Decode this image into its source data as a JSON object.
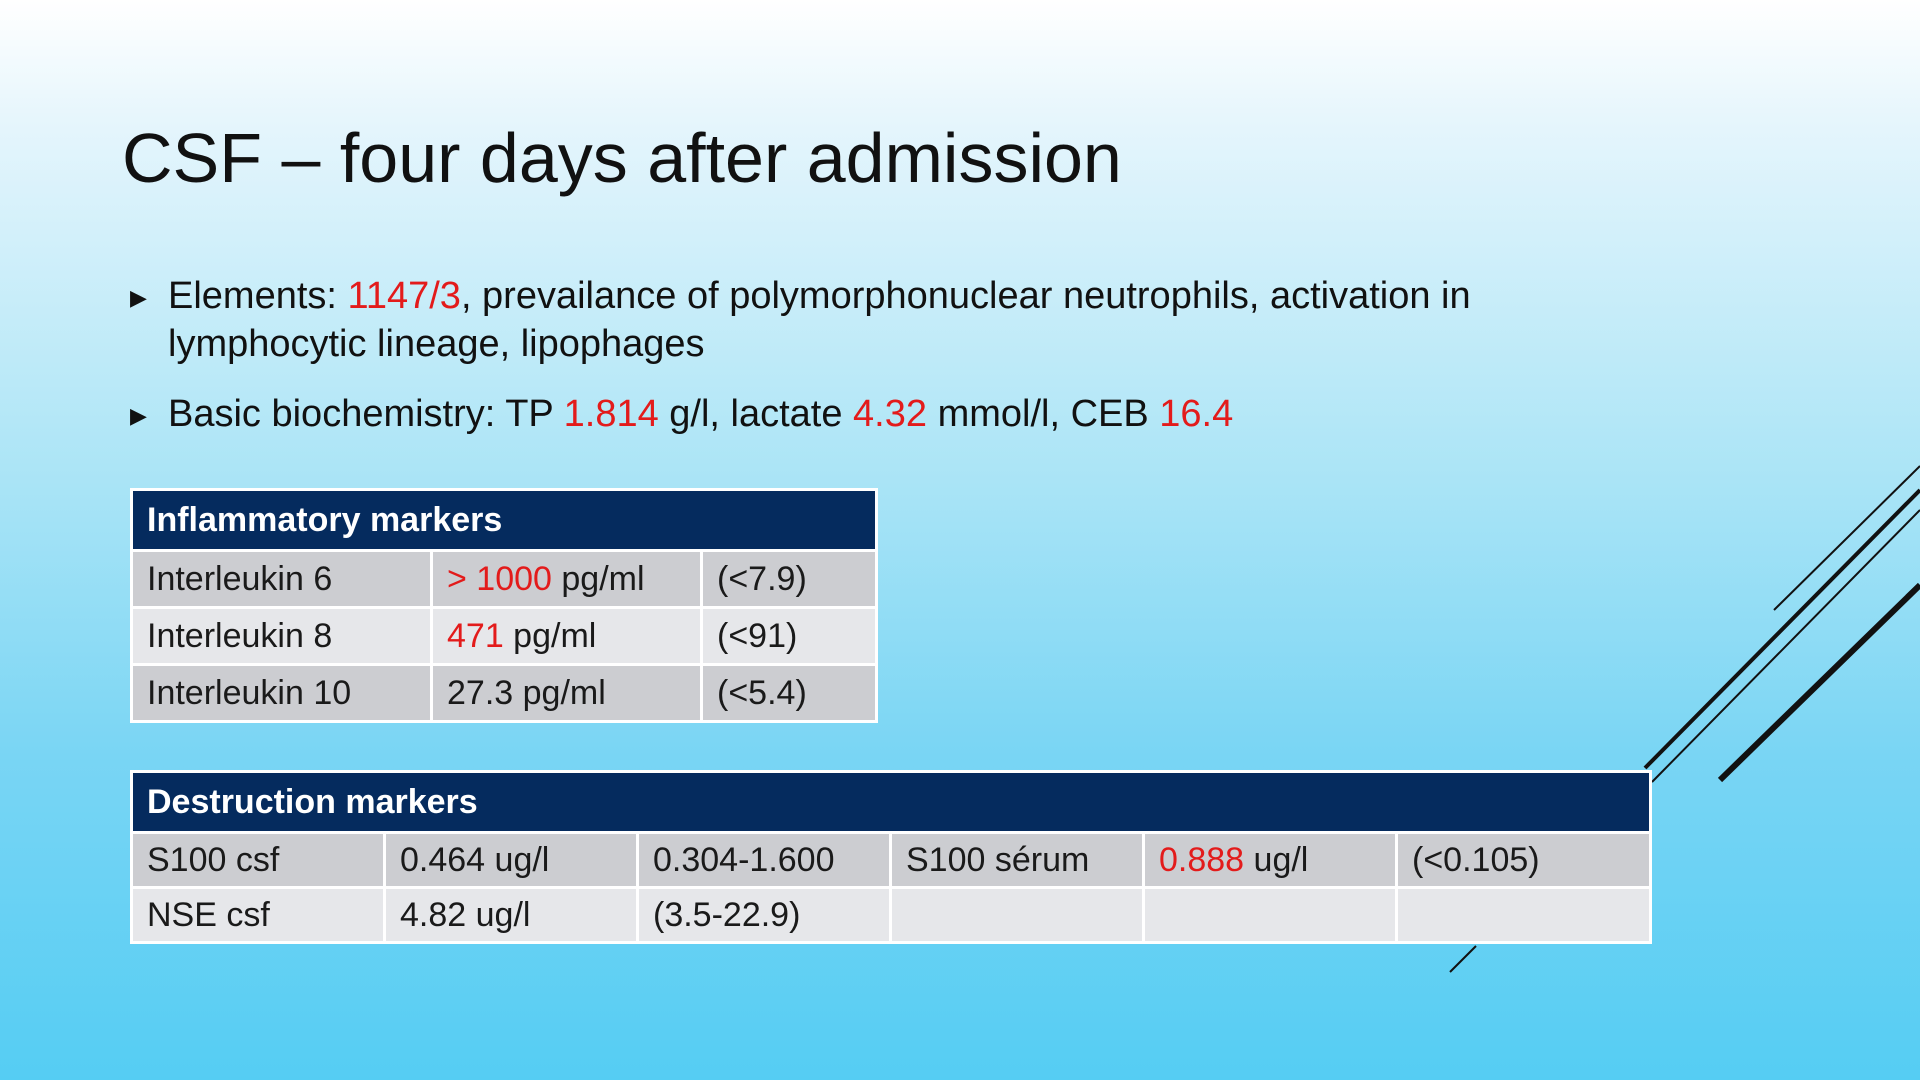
{
  "title": "CSF – four days after admission",
  "bullets": {
    "elements": {
      "label": "Elements: ",
      "value": "1147/3",
      "rest": ", prevailance of polymorphonuclear neutrophils, activation in lymphocytic lineage, lipophages"
    },
    "biochemistry": {
      "label": "Basic biochemistry:  TP ",
      "tp_value": "1.814",
      "tp_unit": " g/l, lactate ",
      "lactate_value": "4.32",
      "lactate_unit": " mmol/l, CEB ",
      "ceb_value": "16.4"
    }
  },
  "inflammatory": {
    "header": "Inflammatory markers",
    "rows": [
      {
        "name": "Interleukin 6",
        "value": "> 1000",
        "unit": " pg/ml",
        "value_red": true,
        "ref": "(<7.9)"
      },
      {
        "name": "Interleukin 8",
        "value": "471",
        "unit": " pg/ml",
        "value_red": true,
        "ref": "(<91)"
      },
      {
        "name": "Interleukin 10",
        "value": "27.3",
        "unit": " pg/ml",
        "value_red": false,
        "ref": "(<5.4)"
      }
    ]
  },
  "destruction": {
    "header": "Destruction markers",
    "rows": [
      [
        "S100 csf",
        "0.464 ug/l",
        "0.304-1.600",
        "S100 sérum",
        "0.888",
        " ug/l",
        "(<0.105)"
      ],
      [
        "NSE csf",
        "4.82 ug/l",
        "(3.5-22.9)",
        "",
        "",
        "",
        ""
      ]
    ]
  },
  "colors": {
    "highlight": "#e31b1b",
    "table_header": "#052b5e",
    "row_dark": "#cccdd1",
    "row_light": "#e6e7ea"
  }
}
